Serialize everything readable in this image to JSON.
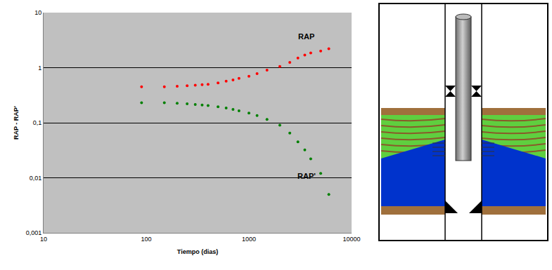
{
  "chart_data": {
    "type": "scatter",
    "x_label": "Tiempo (dias)",
    "y_label": "RAP - RAP'",
    "log": true,
    "grid": "y",
    "xlim": [
      10,
      10000
    ],
    "xticks": [
      10,
      100,
      1000,
      10000
    ],
    "ylim": [
      0.001,
      10
    ],
    "yticks": [
      {
        "value": 0.001,
        "label": "0,001"
      },
      {
        "value": 0.01,
        "label": "0,01"
      },
      {
        "value": 0.1,
        "label": "0,1"
      },
      1,
      10
    ],
    "series": [
      {
        "name": "RAP",
        "color": "#ff0000",
        "marker": "circle",
        "x": [
          90,
          150,
          200,
          250,
          300,
          350,
          400,
          500,
          600,
          700,
          800,
          1000,
          1200,
          1500,
          2000,
          2500,
          3000,
          3500,
          4000,
          5000,
          6000
        ],
        "values": [
          0.45,
          0.45,
          0.46,
          0.47,
          0.48,
          0.49,
          0.5,
          0.53,
          0.57,
          0.6,
          0.64,
          0.7,
          0.78,
          0.9,
          1.05,
          1.25,
          1.5,
          1.7,
          1.85,
          2.0,
          2.2
        ]
      },
      {
        "name": "RAP'",
        "color": "#008000",
        "marker": "circle",
        "x": [
          90,
          150,
          200,
          250,
          300,
          350,
          400,
          500,
          600,
          700,
          800,
          1000,
          1200,
          1500,
          2000,
          2500,
          3000,
          3500,
          4000,
          5000,
          6000
        ],
        "values": [
          0.23,
          0.23,
          0.225,
          0.22,
          0.215,
          0.21,
          0.205,
          0.195,
          0.185,
          0.175,
          0.165,
          0.15,
          0.135,
          0.115,
          0.09,
          0.065,
          0.045,
          0.032,
          0.022,
          0.012,
          0.005
        ]
      }
    ]
  }
}
